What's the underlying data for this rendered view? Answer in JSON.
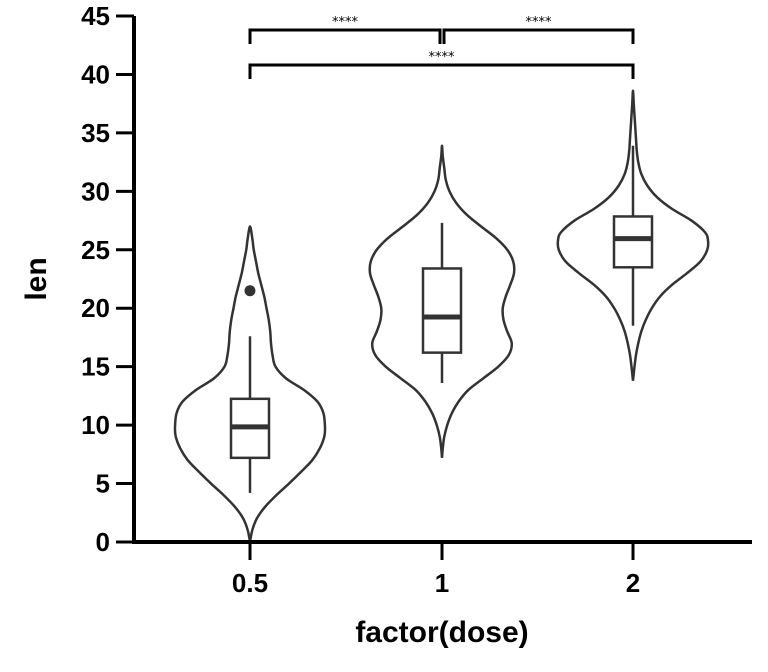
{
  "chart_data": {
    "type": "violin",
    "xlabel": "factor(dose)",
    "ylabel": "len",
    "ylim": [
      0,
      45
    ],
    "yticks": [
      0,
      5,
      10,
      15,
      20,
      25,
      30,
      35,
      40,
      45
    ],
    "categories": [
      "0.5",
      "1",
      "2"
    ],
    "groups": [
      {
        "category": "0.5",
        "box": {
          "q1": 7.2,
          "median": 9.85,
          "q3": 12.25,
          "whisker_low": 4.2,
          "whisker_high": 17.6
        },
        "outliers": [
          21.5
        ],
        "violin_range": [
          0,
          27
        ],
        "density_profile": [
          [
            0,
            0.0
          ],
          [
            1,
            0.03
          ],
          [
            2,
            0.09
          ],
          [
            3,
            0.2
          ],
          [
            4,
            0.35
          ],
          [
            5,
            0.52
          ],
          [
            6,
            0.68
          ],
          [
            7,
            0.83
          ],
          [
            8,
            0.93
          ],
          [
            9,
            0.99
          ],
          [
            9.8,
            1.0
          ],
          [
            11,
            0.98
          ],
          [
            12,
            0.9
          ],
          [
            13,
            0.72
          ],
          [
            14,
            0.48
          ],
          [
            15,
            0.34
          ],
          [
            16,
            0.3
          ],
          [
            17,
            0.28
          ],
          [
            18,
            0.27
          ],
          [
            19,
            0.25
          ],
          [
            20,
            0.22
          ],
          [
            21,
            0.19
          ],
          [
            22,
            0.15
          ],
          [
            23,
            0.11
          ],
          [
            24,
            0.08
          ],
          [
            25,
            0.05
          ],
          [
            26,
            0.03
          ],
          [
            27,
            0.0
          ]
        ]
      },
      {
        "category": "1",
        "box": {
          "q1": 16.2,
          "median": 19.25,
          "q3": 23.4,
          "whisker_low": 13.6,
          "whisker_high": 27.3
        },
        "outliers": [],
        "violin_range": [
          7.2,
          33.9
        ],
        "density_profile": [
          [
            7.2,
            0.0
          ],
          [
            8,
            0.01
          ],
          [
            9,
            0.03
          ],
          [
            10,
            0.07
          ],
          [
            11,
            0.13
          ],
          [
            12,
            0.22
          ],
          [
            13,
            0.35
          ],
          [
            14,
            0.55
          ],
          [
            15,
            0.75
          ],
          [
            16,
            0.89
          ],
          [
            17,
            0.93
          ],
          [
            18,
            0.87
          ],
          [
            19,
            0.82
          ],
          [
            20,
            0.81
          ],
          [
            21,
            0.85
          ],
          [
            22,
            0.91
          ],
          [
            23,
            0.96
          ],
          [
            24,
            0.95
          ],
          [
            25,
            0.87
          ],
          [
            26,
            0.72
          ],
          [
            27,
            0.52
          ],
          [
            28,
            0.33
          ],
          [
            29,
            0.19
          ],
          [
            30,
            0.1
          ],
          [
            31,
            0.05
          ],
          [
            32,
            0.03
          ],
          [
            33,
            0.01
          ],
          [
            33.9,
            0.0
          ]
        ]
      },
      {
        "category": "2",
        "box": {
          "q1": 23.5,
          "median": 25.95,
          "q3": 27.85,
          "whisker_low": 18.5,
          "whisker_high": 33.9
        },
        "outliers": [],
        "violin_range": [
          13.8,
          38.6
        ],
        "density_profile": [
          [
            13.8,
            0.0
          ],
          [
            15,
            0.02
          ],
          [
            16,
            0.04
          ],
          [
            17,
            0.07
          ],
          [
            18,
            0.11
          ],
          [
            19,
            0.17
          ],
          [
            20,
            0.25
          ],
          [
            21,
            0.36
          ],
          [
            22,
            0.52
          ],
          [
            23,
            0.72
          ],
          [
            24,
            0.9
          ],
          [
            25,
            0.99
          ],
          [
            25.8,
            1.0
          ],
          [
            26.5,
            0.96
          ],
          [
            27.5,
            0.78
          ],
          [
            28.5,
            0.52
          ],
          [
            29.5,
            0.32
          ],
          [
            30.5,
            0.19
          ],
          [
            31.5,
            0.11
          ],
          [
            32.5,
            0.07
          ],
          [
            33.5,
            0.05
          ],
          [
            34.5,
            0.04
          ],
          [
            35.5,
            0.03
          ],
          [
            36.5,
            0.02
          ],
          [
            37.5,
            0.01
          ],
          [
            38.6,
            0.0
          ]
        ]
      }
    ],
    "comparisons": [
      {
        "from": "0.5",
        "to": "1",
        "label": "****"
      },
      {
        "from": "1",
        "to": "2",
        "label": "****"
      },
      {
        "from": "0.5",
        "to": "2",
        "label": "****"
      }
    ],
    "grid": false,
    "legend": "none"
  }
}
